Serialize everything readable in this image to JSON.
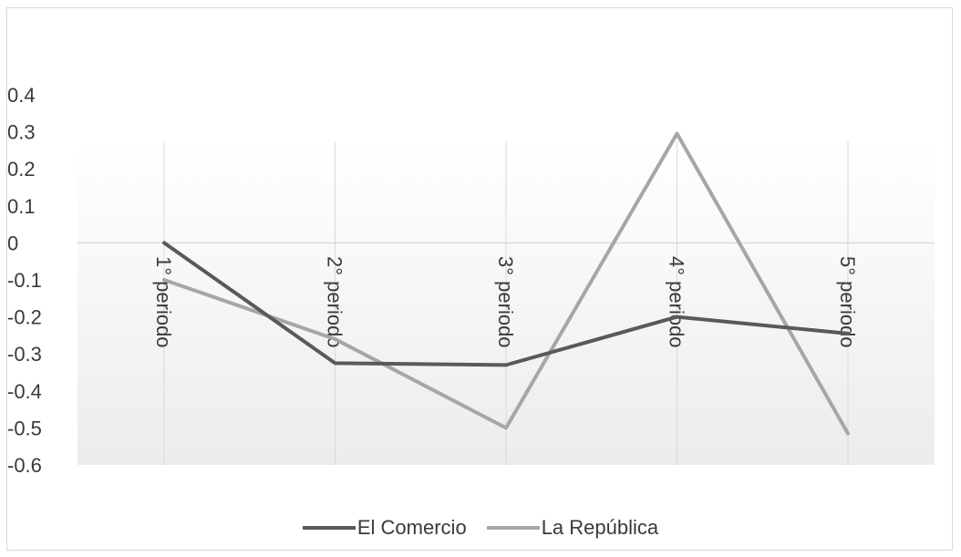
{
  "chart_data": {
    "type": "line",
    "categories": [
      "1° periodo",
      "2° periodo",
      "3° periodo",
      "4° periodo",
      "5° periodo"
    ],
    "series": [
      {
        "name": "El Comercio",
        "values": [
          0.0,
          -0.325,
          -0.33,
          -0.2,
          -0.245
        ],
        "color": "#595959"
      },
      {
        "name": "La República",
        "values": [
          -0.1,
          -0.26,
          -0.5,
          0.295,
          -0.515
        ],
        "color": "#a6a6a6"
      }
    ],
    "yticks": [
      "0.4",
      "0.3",
      "0.2",
      "0.1",
      "0",
      "-0.1",
      "-0.2",
      "-0.3",
      "-0.4",
      "-0.5",
      "-0.6"
    ],
    "ylim": [
      -0.6,
      0.4
    ],
    "legend_position": "bottom",
    "grid": "vertical"
  }
}
